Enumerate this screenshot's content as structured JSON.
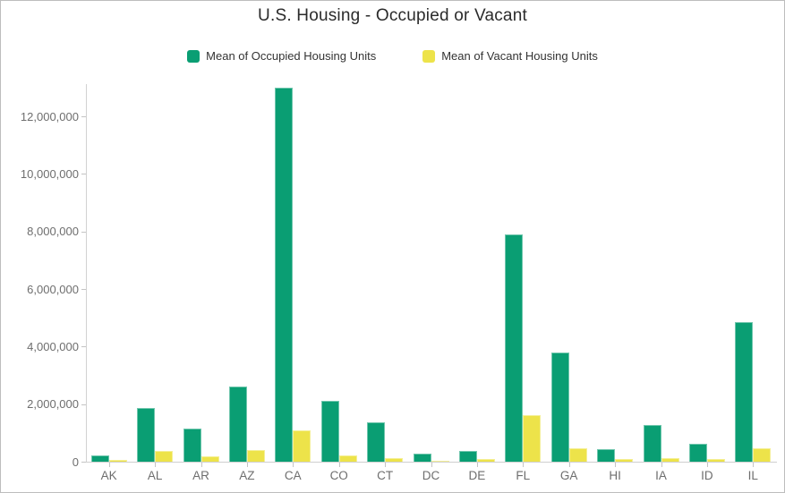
{
  "title": "U.S. Housing - Occupied or Vacant",
  "legend": {
    "items": [
      {
        "label": "Mean of Occupied Housing Units",
        "color": "#0a9e73"
      },
      {
        "label": "Mean of Vacant Housing Units",
        "color": "#ede34a"
      }
    ]
  },
  "chart_data": {
    "type": "bar",
    "title": "U.S. Housing - Occupied or Vacant",
    "xlabel": "",
    "ylabel": "",
    "categories": [
      "AK",
      "AL",
      "AR",
      "AZ",
      "CA",
      "CO",
      "CT",
      "DC",
      "DE",
      "FL",
      "GA",
      "HI",
      "IA",
      "ID",
      "IL"
    ],
    "series": [
      {
        "name": "Mean of Occupied Housing Units",
        "color": "#0a9e73",
        "values": [
          230000,
          1870000,
          1140000,
          2610000,
          13000000,
          2110000,
          1360000,
          280000,
          385000,
          7900000,
          3800000,
          440000,
          1270000,
          630000,
          4850000
        ]
      },
      {
        "name": "Mean of Vacant Housing Units",
        "color": "#ede34a",
        "values": [
          60000,
          380000,
          190000,
          400000,
          1080000,
          220000,
          135000,
          25000,
          85000,
          1610000,
          470000,
          90000,
          130000,
          100000,
          460000
        ]
      }
    ],
    "ylim": [
      0,
      13120000
    ],
    "yticks": [
      0,
      2000000,
      4000000,
      6000000,
      8000000,
      10000000,
      12000000
    ],
    "ytick_labels": [
      "0",
      "2,000,000",
      "4,000,000",
      "6,000,000",
      "8,000,000",
      "10,000,000",
      "12,000,000"
    ],
    "grid": false,
    "legend_position": "top"
  },
  "colors": {
    "occupied": "#0a9e73",
    "vacant": "#ede34a",
    "axis_line": "#d2d2d2",
    "tick": "#c4c4c4",
    "tick_label": "#6e6e6e",
    "title_text": "#2b2b2b",
    "legend_text": "#333333",
    "frame_border": "#bdbdbd",
    "background": "#ffffff"
  }
}
